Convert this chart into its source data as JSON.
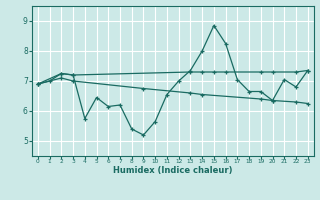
{
  "xlabel": "Humidex (Indice chaleur)",
  "xlim": [
    -0.5,
    23.5
  ],
  "ylim": [
    4.5,
    9.5
  ],
  "yticks": [
    5,
    6,
    7,
    8,
    9
  ],
  "xticks": [
    0,
    1,
    2,
    3,
    4,
    5,
    6,
    7,
    8,
    9,
    10,
    11,
    12,
    13,
    14,
    15,
    16,
    17,
    18,
    19,
    20,
    21,
    22,
    23
  ],
  "bg_color": "#cce9e7",
  "grid_color": "#ffffff",
  "line_color": "#1a6b62",
  "line1_x": [
    0,
    1,
    2,
    3,
    4,
    5,
    6,
    7,
    8,
    9,
    10,
    11,
    12,
    13,
    14,
    15,
    16,
    17,
    18,
    19,
    20,
    21,
    22,
    23
  ],
  "line1_y": [
    6.9,
    7.0,
    7.25,
    7.2,
    5.75,
    6.45,
    6.15,
    6.2,
    5.4,
    5.2,
    5.65,
    6.55,
    7.0,
    7.35,
    8.0,
    8.85,
    8.25,
    7.05,
    6.65,
    6.65,
    6.35,
    7.05,
    6.8,
    7.35
  ],
  "line2_x": [
    0,
    2,
    3,
    13,
    14,
    15,
    16,
    19,
    20,
    22,
    23
  ],
  "line2_y": [
    6.9,
    7.25,
    7.2,
    7.3,
    7.3,
    7.3,
    7.3,
    7.3,
    7.3,
    7.3,
    7.35
  ],
  "line3_x": [
    0,
    2,
    3,
    9,
    13,
    14,
    19,
    20,
    22,
    23
  ],
  "line3_y": [
    6.9,
    7.1,
    7.0,
    6.75,
    6.6,
    6.55,
    6.4,
    6.35,
    6.3,
    6.25
  ]
}
